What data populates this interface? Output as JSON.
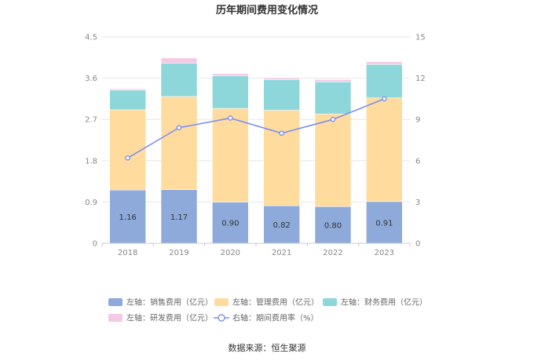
{
  "chart_data": {
    "type": "bar",
    "title": "历年期间费用变化情况",
    "categories": [
      "2018",
      "2019",
      "2020",
      "2021",
      "2022",
      "2023"
    ],
    "left_axis": {
      "min": 0,
      "max": 4.5,
      "ticks": [
        "0",
        "0.9",
        "1.8",
        "2.7",
        "3.6",
        "4.5"
      ]
    },
    "right_axis": {
      "min": 0,
      "max": 15,
      "ticks": [
        "0",
        "3",
        "6",
        "9",
        "12",
        "15"
      ]
    },
    "series": [
      {
        "name": "左轴：销售费用（亿元）",
        "type": "bar",
        "axis": "left",
        "color": "#8eaadb",
        "values": [
          1.16,
          1.17,
          0.9,
          0.82,
          0.8,
          0.91
        ],
        "labels": [
          "1.16",
          "1.17",
          "0.90",
          "0.82",
          "0.80",
          "0.91"
        ]
      },
      {
        "name": "左轴：管理费用（亿元）",
        "type": "bar",
        "axis": "left",
        "color": "#ffdb9e",
        "values": [
          1.75,
          2.03,
          2.04,
          2.08,
          2.02,
          2.26
        ]
      },
      {
        "name": "左轴：财务费用（亿元）",
        "type": "bar",
        "axis": "left",
        "color": "#8dd7db",
        "values": [
          0.43,
          0.73,
          0.71,
          0.67,
          0.7,
          0.73
        ]
      },
      {
        "name": "左轴：研发费用（亿元）",
        "type": "bar",
        "axis": "left",
        "color": "#f3c9e6",
        "values": [
          0.03,
          0.11,
          0.05,
          0.04,
          0.05,
          0.06
        ]
      },
      {
        "name": "右轴：期间费用率（%）",
        "type": "line",
        "axis": "right",
        "color": "#7b8ff0",
        "values": [
          6.2,
          8.4,
          9.1,
          8.0,
          9.0,
          10.5
        ]
      }
    ],
    "legend_placement": "bottom",
    "grid": true
  },
  "source": "数据来源：恒生聚源"
}
